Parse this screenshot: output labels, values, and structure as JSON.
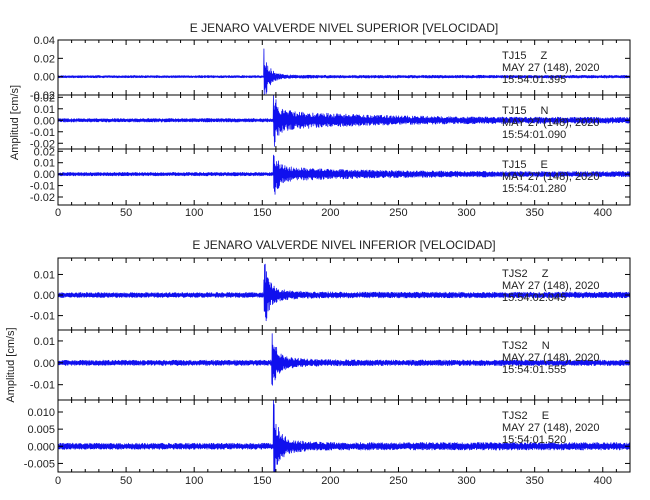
{
  "chart_data": [
    {
      "type": "line",
      "title": "E JENARO VALVERDE NIVEL SUPERIOR [VELOCIDAD]",
      "ylabel": "Amplitud [cm/s]",
      "xlim": [
        0,
        420
      ],
      "x_ticks": [
        "0",
        "50",
        "100",
        "150",
        "200",
        "250",
        "300",
        "350",
        "400"
      ],
      "panels": [
        {
          "station": "TJ15",
          "component": "Z",
          "date": "MAY 27 (148), 2020",
          "time": "15:54:01.395",
          "ylim": [
            -0.02,
            0.04
          ],
          "y_ticks": [
            "0.04",
            "0.02",
            "0.00",
            "-0.02"
          ],
          "signal": {
            "noise": 0.0012,
            "onset": 151,
            "peak": 0.03,
            "coda_level": 0.004,
            "decay": 9,
            "tail": 0.0015
          }
        },
        {
          "station": "TJ15",
          "component": "N",
          "date": "MAY 27 (148), 2020",
          "time": "15:54:01.090",
          "ylim": [
            -0.025,
            0.022
          ],
          "y_ticks": [
            "0.02",
            "0.01",
            "0.00",
            "-0.01",
            "-0.02"
          ],
          "signal": {
            "noise": 0.0015,
            "onset": 158,
            "peak": 0.02,
            "coda_level": 0.007,
            "decay": 60,
            "tail": 0.0025
          }
        },
        {
          "station": "TJ15",
          "component": "E",
          "date": "MAY 27 (148), 2020",
          "time": "15:54:01.280",
          "ylim": [
            -0.027,
            0.022
          ],
          "y_ticks": [
            "0.02",
            "0.01",
            "0.00",
            "-0.01",
            "-0.02"
          ],
          "signal": {
            "noise": 0.0015,
            "onset": 158,
            "peak": 0.02,
            "coda_level": 0.005,
            "decay": 55,
            "tail": 0.0022
          }
        }
      ]
    },
    {
      "type": "line",
      "title": "E JENARO VALVERDE NIVEL INFERIOR [VELOCIDAD]",
      "ylabel": "Amplitud [cm/s]",
      "xlim": [
        0,
        420
      ],
      "x_ticks": [
        "0",
        "50",
        "100",
        "150",
        "200",
        "250",
        "300",
        "350",
        "400"
      ],
      "panels": [
        {
          "station": "TJS2",
          "component": "Z",
          "date": "MAY 27 (148), 2020",
          "time": "15:54:02.045",
          "ylim": [
            -0.017,
            0.018
          ],
          "y_ticks": [
            "0.01",
            "0.00",
            "-0.01"
          ],
          "signal": {
            "noise": 0.0012,
            "onset": 151,
            "peak": 0.016,
            "coda_level": 0.003,
            "decay": 14,
            "tail": 0.0014
          }
        },
        {
          "station": "TJS2",
          "component": "N",
          "date": "MAY 27 (148), 2020",
          "time": "15:54:01.555",
          "ylim": [
            -0.017,
            0.015
          ],
          "y_ticks": [
            "0.01",
            "0.00",
            "-0.01"
          ],
          "signal": {
            "noise": 0.0012,
            "onset": 157,
            "peak": 0.012,
            "coda_level": 0.003,
            "decay": 14,
            "tail": 0.0013
          }
        },
        {
          "station": "TJS2",
          "component": "E",
          "date": "MAY 27 (148), 2020",
          "time": "15:54:01.520",
          "ylim": [
            -0.0075,
            0.0135
          ],
          "y_ticks": [
            "0.010",
            "0.005",
            "0.000",
            "-0.005"
          ],
          "signal": {
            "noise": 0.0009,
            "onset": 158,
            "peak": 0.011,
            "coda_level": 0.0025,
            "decay": 12,
            "tail": 0.0011
          }
        }
      ]
    }
  ]
}
